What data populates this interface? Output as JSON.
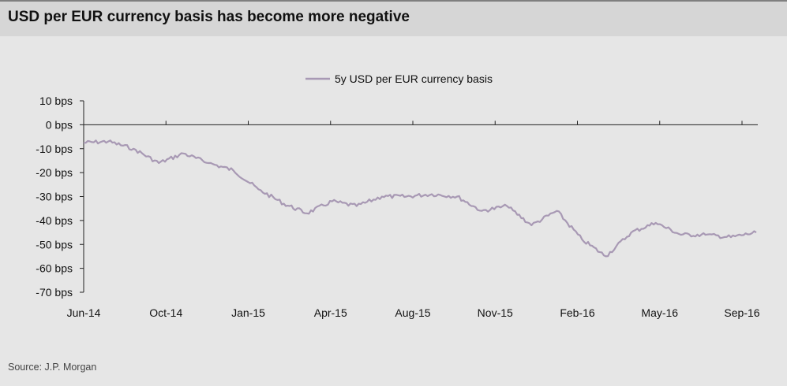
{
  "header": {
    "title": "USD per EUR currency basis has become more negative"
  },
  "footer": {
    "source": "Source: J.P. Morgan"
  },
  "chart_data": {
    "type": "line",
    "title": "USD per EUR currency basis has become more negative",
    "xlabel": "",
    "ylabel": "",
    "ylim": [
      -70,
      10
    ],
    "y_ticks": [
      10,
      0,
      -10,
      -20,
      -30,
      -40,
      -50,
      -60,
      -70
    ],
    "y_tick_labels": [
      "10 bps",
      "0 bps",
      "-10 bps",
      "-20 bps",
      "-30 bps",
      "-40 bps",
      "-50 bps",
      "-60 bps",
      "-70 bps"
    ],
    "x_tick_labels": [
      "Jun-14",
      "Oct-14",
      "Jan-15",
      "Apr-15",
      "Aug-15",
      "Nov-15",
      "Feb-16",
      "May-16",
      "Sep-16"
    ],
    "grid": false,
    "legend_position": "top-center",
    "colors": {
      "line": "#a899b4",
      "axis": "#222222"
    },
    "series": [
      {
        "name": "5y USD per EUR currency basis",
        "x": [
          "2014-06",
          "2014-07",
          "2014-08",
          "2014-09",
          "2014-10",
          "2014-11",
          "2014-12",
          "2015-01",
          "2015-02",
          "2015-03",
          "2015-04",
          "2015-05",
          "2015-06",
          "2015-07",
          "2015-08",
          "2015-09",
          "2015-10",
          "2015-11",
          "2015-12",
          "2016-01",
          "2016-02",
          "2016-03",
          "2016-04",
          "2016-05",
          "2016-06",
          "2016-07",
          "2016-08",
          "2016-09"
        ],
        "values": [
          -7.5,
          -7,
          -10,
          -16,
          -12,
          -16,
          -19,
          -27,
          -33,
          -37,
          -32,
          -34,
          -30,
          -30,
          -29,
          -30,
          -36,
          -34,
          -42,
          -36,
          -48,
          -55,
          -45,
          -41,
          -46,
          -46,
          -47,
          -45
        ]
      }
    ]
  }
}
